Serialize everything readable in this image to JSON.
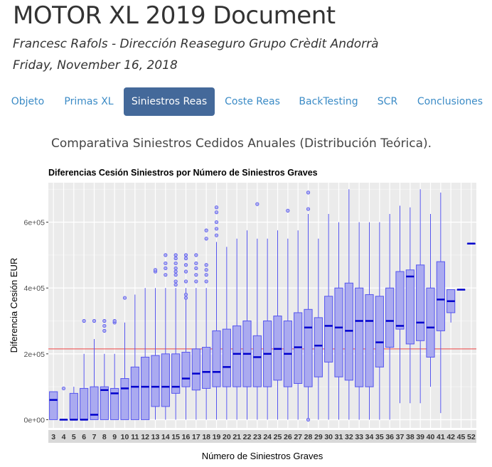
{
  "header": {
    "title": "MOTOR XL 2019 Document",
    "author": "Francesc Rafols - Dirección Reaseguro Grupo Crèdit Andorrà",
    "date": "Friday, November 16, 2018"
  },
  "nav": {
    "tabs": [
      {
        "label": "Objeto",
        "active": false
      },
      {
        "label": "Primas XL",
        "active": false
      },
      {
        "label": "Siniestros Reas",
        "active": true
      },
      {
        "label": "Coste Reas",
        "active": false
      },
      {
        "label": "BackTesting",
        "active": false
      },
      {
        "label": "SCR",
        "active": false
      },
      {
        "label": "Conclusiones",
        "active": false
      }
    ]
  },
  "section": {
    "title": "Comparativa Siniestros Cedidos Anuales (Distribución Teórica)."
  },
  "chart_data": {
    "type": "boxplot",
    "title": "Diferencias Cesión Siniestros por Número de Siniestros Graves",
    "xlabel": "Número de Siniestros Graves",
    "ylabel": "Diferencia Cesión EUR",
    "ylim": [
      -25000,
      720000
    ],
    "yticks": [
      0,
      200000,
      400000,
      600000
    ],
    "ytick_labels": [
      "0e+00",
      "2e+05",
      "4e+05",
      "6e+05"
    ],
    "grid": true,
    "reference_line": 215000,
    "colors": {
      "box_fill": "#aaaaf0",
      "box_stroke": "#5555ee",
      "median": "#0000cc",
      "reference": "#ee4444",
      "panel": "#ebebeb"
    },
    "categories": [
      "3",
      "4",
      "5",
      "6",
      "7",
      "8",
      "9",
      "10",
      "11",
      "12",
      "13",
      "14",
      "15",
      "16",
      "17",
      "18",
      "19",
      "20",
      "21",
      "22",
      "23",
      "24",
      "25",
      "26",
      "27",
      "28",
      "29",
      "30",
      "31",
      "32",
      "33",
      "34",
      "35",
      "36",
      "37",
      "38",
      "39",
      "40",
      "41",
      "42",
      "45",
      "52"
    ],
    "boxes": [
      {
        "min": 0,
        "q1": 0,
        "median": 60000,
        "q3": 85000,
        "max": 85000,
        "outliers": []
      },
      {
        "min": 0,
        "q1": 0,
        "median": 0,
        "q3": 0,
        "max": 0,
        "outliers": [
          95000
        ]
      },
      {
        "min": 0,
        "q1": 0,
        "median": 0,
        "q3": 80000,
        "max": 100000,
        "outliers": []
      },
      {
        "min": 0,
        "q1": 0,
        "median": 0,
        "q3": 95000,
        "max": 200000,
        "outliers": [
          300000
        ]
      },
      {
        "min": 0,
        "q1": 0,
        "median": 15000,
        "q3": 100000,
        "max": 245000,
        "outliers": [
          300000
        ]
      },
      {
        "min": 0,
        "q1": 0,
        "median": 90000,
        "q3": 100000,
        "max": 200000,
        "outliers": [
          270000,
          285000,
          300000
        ]
      },
      {
        "min": 0,
        "q1": 0,
        "median": 80000,
        "q3": 95000,
        "max": 200000,
        "outliers": [
          295000,
          300000
        ]
      },
      {
        "min": 0,
        "q1": 0,
        "median": 95000,
        "q3": 125000,
        "max": 295000,
        "outliers": [
          370000
        ]
      },
      {
        "min": 0,
        "q1": 0,
        "median": 100000,
        "q3": 160000,
        "max": 380000,
        "outliers": []
      },
      {
        "min": 0,
        "q1": 0,
        "median": 100000,
        "q3": 190000,
        "max": 400000,
        "outliers": []
      },
      {
        "min": 0,
        "q1": 40000,
        "median": 100000,
        "q3": 195000,
        "max": 400000,
        "outliers": [
          450000,
          455000
        ]
      },
      {
        "min": 0,
        "q1": 40000,
        "median": 100000,
        "q3": 200000,
        "max": 400000,
        "outliers": [
          440000,
          460000,
          475000,
          500000
        ]
      },
      {
        "min": 0,
        "q1": 80000,
        "median": 100000,
        "q3": 200000,
        "max": 400000,
        "outliers": [
          410000,
          420000,
          440000,
          450000,
          460000,
          475000,
          490000,
          500000
        ]
      },
      {
        "min": 0,
        "q1": 100000,
        "median": 125000,
        "q3": 205000,
        "max": 400000,
        "outliers": [
          370000,
          380000,
          420000,
          450000,
          470000,
          490000,
          500000
        ]
      },
      {
        "min": 0,
        "q1": 90000,
        "median": 140000,
        "q3": 215000,
        "max": 400000,
        "outliers": [
          420000,
          440000,
          460000,
          475000,
          500000
        ]
      },
      {
        "min": 0,
        "q1": 95000,
        "median": 145000,
        "q3": 220000,
        "max": 400000,
        "outliers": [
          420000,
          440000,
          455000,
          470000,
          550000,
          575000
        ]
      },
      {
        "min": 0,
        "q1": 100000,
        "median": 145000,
        "q3": 270000,
        "max": 540000,
        "outliers": [
          560000,
          580000,
          600000,
          630000,
          645000
        ]
      },
      {
        "min": 0,
        "q1": 100000,
        "median": 160000,
        "q3": 275000,
        "max": 525000,
        "outliers": []
      },
      {
        "min": 0,
        "q1": 100000,
        "median": 200000,
        "q3": 285000,
        "max": 550000,
        "outliers": []
      },
      {
        "min": 0,
        "q1": 100000,
        "median": 200000,
        "q3": 300000,
        "max": 575000,
        "outliers": []
      },
      {
        "min": 0,
        "q1": 100000,
        "median": 190000,
        "q3": 255000,
        "max": 550000,
        "outliers": [
          655000
        ]
      },
      {
        "min": 0,
        "q1": 100000,
        "median": 200000,
        "q3": 300000,
        "max": 550000,
        "outliers": []
      },
      {
        "min": 0,
        "q1": 120000,
        "median": 215000,
        "q3": 315000,
        "max": 575000,
        "outliers": []
      },
      {
        "min": 0,
        "q1": 100000,
        "median": 200000,
        "q3": 300000,
        "max": 550000,
        "outliers": [
          635000
        ]
      },
      {
        "min": 0,
        "q1": 110000,
        "median": 220000,
        "q3": 325000,
        "max": 575000,
        "outliers": []
      },
      {
        "min": 0,
        "q1": 100000,
        "median": 280000,
        "q3": 335000,
        "max": 625000,
        "outliers": [
          0,
          640000,
          690000
        ]
      },
      {
        "min": 0,
        "q1": 130000,
        "median": 225000,
        "q3": 310000,
        "max": 550000,
        "outliers": []
      },
      {
        "min": 0,
        "q1": 175000,
        "median": 285000,
        "q3": 375000,
        "max": 625000,
        "outliers": []
      },
      {
        "min": 0,
        "q1": 130000,
        "median": 280000,
        "q3": 400000,
        "max": 600000,
        "outliers": []
      },
      {
        "min": 0,
        "q1": 120000,
        "median": 270000,
        "q3": 415000,
        "max": 700000,
        "outliers": []
      },
      {
        "min": 0,
        "q1": 100000,
        "median": 300000,
        "q3": 400000,
        "max": 600000,
        "outliers": []
      },
      {
        "min": 0,
        "q1": 100000,
        "median": 300000,
        "q3": 380000,
        "max": 600000,
        "outliers": []
      },
      {
        "min": 0,
        "q1": 160000,
        "median": 235000,
        "q3": 375000,
        "max": 600000,
        "outliers": []
      },
      {
        "min": 0,
        "q1": 220000,
        "median": 300000,
        "q3": 400000,
        "max": 625000,
        "outliers": []
      },
      {
        "min": 50000,
        "q1": 275000,
        "median": 285000,
        "q3": 450000,
        "max": 650000,
        "outliers": []
      },
      {
        "min": 50000,
        "q1": 230000,
        "median": 435000,
        "q3": 455000,
        "max": 645000,
        "outliers": []
      },
      {
        "min": 50000,
        "q1": 240000,
        "median": 295000,
        "q3": 470000,
        "max": 700000,
        "outliers": []
      },
      {
        "min": 100000,
        "q1": 190000,
        "median": 280000,
        "q3": 400000,
        "max": 625000,
        "outliers": []
      },
      {
        "min": 20000,
        "q1": 270000,
        "median": 365000,
        "q3": 480000,
        "max": 690000,
        "outliers": []
      },
      {
        "min": 295000,
        "q1": 325000,
        "median": 360000,
        "q3": 395000,
        "max": 395000,
        "outliers": []
      },
      {
        "min": 395000,
        "q1": 395000,
        "median": 395000,
        "q3": 395000,
        "max": 395000,
        "outliers": []
      },
      {
        "min": 535000,
        "q1": 535000,
        "median": 535000,
        "q3": 535000,
        "max": 535000,
        "outliers": []
      }
    ]
  }
}
